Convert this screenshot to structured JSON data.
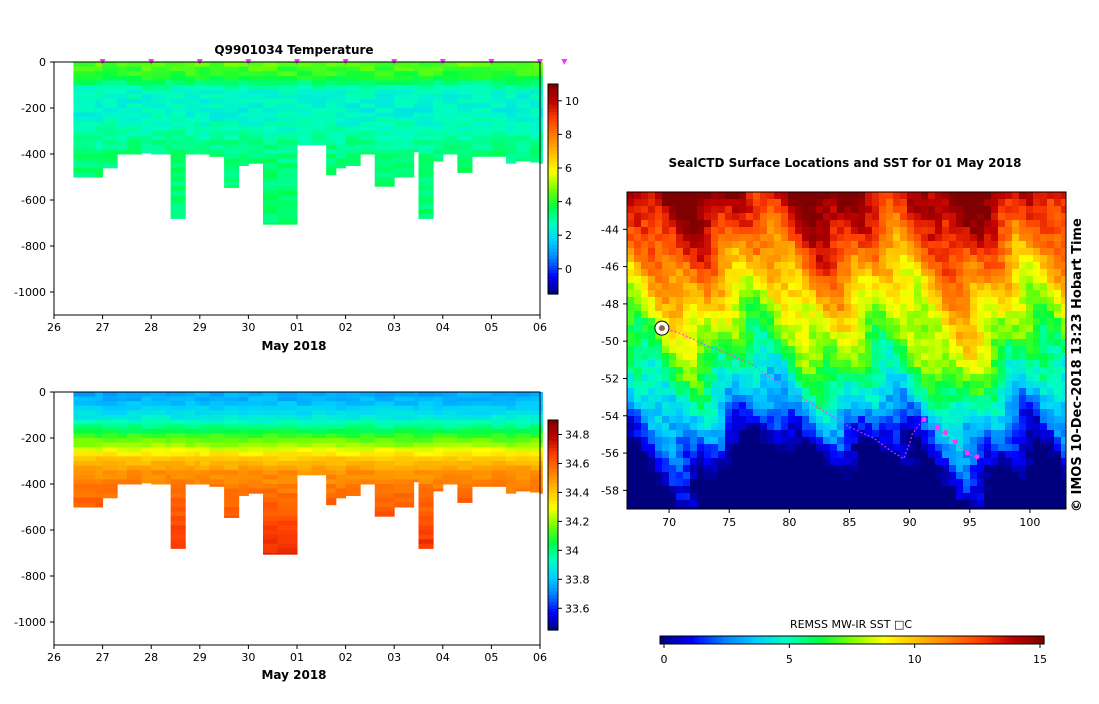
{
  "credit": "© IMOS 10-Dec-2018 13:23 Hobart Time",
  "colors": {
    "jet": [
      "#00007f",
      "#0000ff",
      "#007fff",
      "#00cfff",
      "#00ffbf",
      "#00ff40",
      "#7fff00",
      "#ffff00",
      "#ffbf00",
      "#ff7f00",
      "#ff3f00",
      "#bf0000",
      "#7f0000"
    ],
    "profile_marker": "#ff33ff",
    "track": "#ff33ff"
  },
  "chart_data": [
    {
      "id": "temperature",
      "type": "heatmap",
      "title": "Q9901034  Temperature",
      "xlabel": "May 2018",
      "ylabel": "",
      "x_ticks": [
        "26",
        "27",
        "28",
        "29",
        "30",
        "01",
        "02",
        "03",
        "04",
        "05",
        "06"
      ],
      "y_ticks": [
        0,
        -200,
        -400,
        -600,
        -800,
        -1000
      ],
      "ylim": [
        -1100,
        0
      ],
      "colorbar": {
        "min": -1.5,
        "max": 11,
        "ticks": [
          0,
          2,
          4,
          6,
          8,
          10
        ]
      },
      "profile_days": [
        0.4,
        0.85,
        1.0,
        1.3,
        1.5,
        1.8,
        2.0,
        2.3,
        2.4,
        2.7,
        2.9,
        3.0,
        3.2,
        3.5,
        3.8,
        4.0,
        4.3,
        4.6,
        5.0,
        5.3,
        5.6,
        5.8,
        6.0,
        6.3,
        6.6,
        7.0,
        7.4,
        7.5,
        7.8,
        8.0,
        8.3,
        8.6,
        9.0,
        9.3,
        9.5,
        9.8,
        10.0
      ],
      "profile_depths": [
        500,
        500,
        460,
        400,
        400,
        395,
        400,
        400,
        680,
        400,
        400,
        400,
        410,
        545,
        450,
        440,
        705,
        705,
        360,
        360,
        490,
        460,
        450,
        400,
        540,
        500,
        390,
        680,
        430,
        400,
        480,
        410,
        410,
        440,
        430,
        435,
        440
      ],
      "depth_levels": [
        0,
        -60,
        -120,
        -160,
        -220,
        -280,
        -340,
        -400,
        -500,
        -600,
        -700
      ],
      "temperature_levels_C": [
        4.5,
        4.0,
        2.6,
        2.5,
        2.4,
        2.7,
        3.0,
        3.2,
        3.3,
        3.3,
        3.4
      ],
      "surface_markers_days": [
        1,
        2,
        3,
        4,
        5,
        6,
        7,
        8,
        9,
        10,
        10.5
      ]
    },
    {
      "id": "salinity",
      "type": "heatmap",
      "title": "",
      "xlabel": "May 2018",
      "ylabel": "",
      "x_ticks": [
        "26",
        "27",
        "28",
        "29",
        "30",
        "01",
        "02",
        "03",
        "04",
        "05",
        "06"
      ],
      "y_ticks": [
        0,
        -200,
        -400,
        -600,
        -800,
        -1000
      ],
      "ylim": [
        -1100,
        0
      ],
      "colorbar": {
        "min": 33.45,
        "max": 34.9,
        "ticks": [
          33.6,
          33.8,
          34,
          34.2,
          34.4,
          34.6,
          34.8
        ]
      },
      "depth_levels": [
        0,
        -60,
        -120,
        -170,
        -230,
        -290,
        -350,
        -420,
        -500,
        -600,
        -700
      ],
      "salinity_levels_psu": [
        33.75,
        33.8,
        33.9,
        34.05,
        34.2,
        34.4,
        34.5,
        34.55,
        34.6,
        34.65,
        34.7
      ]
    },
    {
      "id": "sst-map",
      "type": "heatmap",
      "title": "SealCTD Surface Locations and SST for 01 May 2018",
      "lon_ticks": [
        70,
        75,
        80,
        85,
        90,
        95,
        100
      ],
      "lat_ticks": [
        -44,
        -46,
        -48,
        -50,
        -52,
        -54,
        -56,
        -58
      ],
      "lon_range": [
        66.5,
        103
      ],
      "lat_range": [
        -59,
        -42
      ],
      "colorbar": {
        "label": "REMSS MW-IR SST □C",
        "min": 0,
        "max": 15,
        "ticks": [
          0,
          5,
          10,
          15
        ]
      },
      "track_lonlat": [
        [
          69.5,
          -49.3
        ],
        [
          71,
          -49.6
        ],
        [
          73,
          -50.2
        ],
        [
          75,
          -50.7
        ],
        [
          77,
          -51.3
        ],
        [
          79,
          -52.2
        ],
        [
          81,
          -53.0
        ],
        [
          83,
          -53.8
        ],
        [
          85,
          -54.6
        ],
        [
          87,
          -55.2
        ],
        [
          88.5,
          -55.9
        ],
        [
          89.5,
          -56.3
        ],
        [
          90,
          -55.5
        ],
        [
          90.2,
          -55.0
        ],
        [
          91,
          -54.3
        ],
        [
          92,
          -54.7
        ],
        [
          93,
          -55.0
        ],
        [
          94,
          -55.6
        ],
        [
          95,
          -56.1
        ],
        [
          95.5,
          -56.2
        ]
      ],
      "profile_lonlat": [
        [
          91.2,
          -54.2
        ],
        [
          92.3,
          -54.6
        ],
        [
          93,
          -54.9
        ],
        [
          93.8,
          -55.4
        ],
        [
          94.8,
          -56.0
        ],
        [
          95.6,
          -56.2
        ]
      ]
    }
  ]
}
